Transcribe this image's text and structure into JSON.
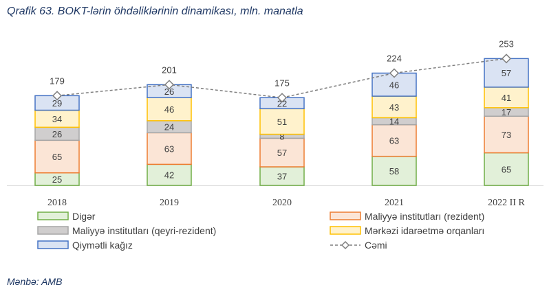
{
  "chart_data": {
    "type": "bar",
    "stacked": true,
    "title": "Qrafik 63. BOKT-lərin öhdəliklərinin dinamikası, mln. manatla",
    "categories": [
      "2018",
      "2019",
      "2020",
      "2021",
      "2022 II R"
    ],
    "series": [
      {
        "name": "Digər",
        "values": [
          25,
          42,
          37,
          58,
          65
        ],
        "fill": "#e2f0d9",
        "stroke": "#70ad47"
      },
      {
        "name": "Maliyyə institutları (rezident)",
        "values": [
          65,
          63,
          57,
          63,
          73
        ],
        "fill": "#fbe5d6",
        "stroke": "#ed7d31"
      },
      {
        "name": "Maliyyə institutları (qeyri-rezident)",
        "values": [
          26,
          24,
          8,
          14,
          17
        ],
        "fill": "#d0cece",
        "stroke": "#a5a5a5"
      },
      {
        "name": "Mərkəzi idarəetmə orqanları",
        "values": [
          34,
          46,
          51,
          43,
          41
        ],
        "fill": "#fff2cc",
        "stroke": "#ffc000"
      },
      {
        "name": "Qiymətli kağız",
        "values": [
          29,
          26,
          22,
          46,
          57
        ],
        "fill": "#dae3f3",
        "stroke": "#4472c4"
      }
    ],
    "line": {
      "name": "Cəmi",
      "values": [
        179,
        201,
        175,
        224,
        253
      ],
      "color": "#7f7f7f",
      "style": "dashed",
      "marker": "diamond"
    },
    "ylim": [
      0,
      260
    ],
    "grid": false,
    "legend": "bottom"
  },
  "source": "Mənbə: AMB",
  "colors": {
    "title": "#1f3864",
    "label": "#404040",
    "axis": "#d9d9d9"
  }
}
